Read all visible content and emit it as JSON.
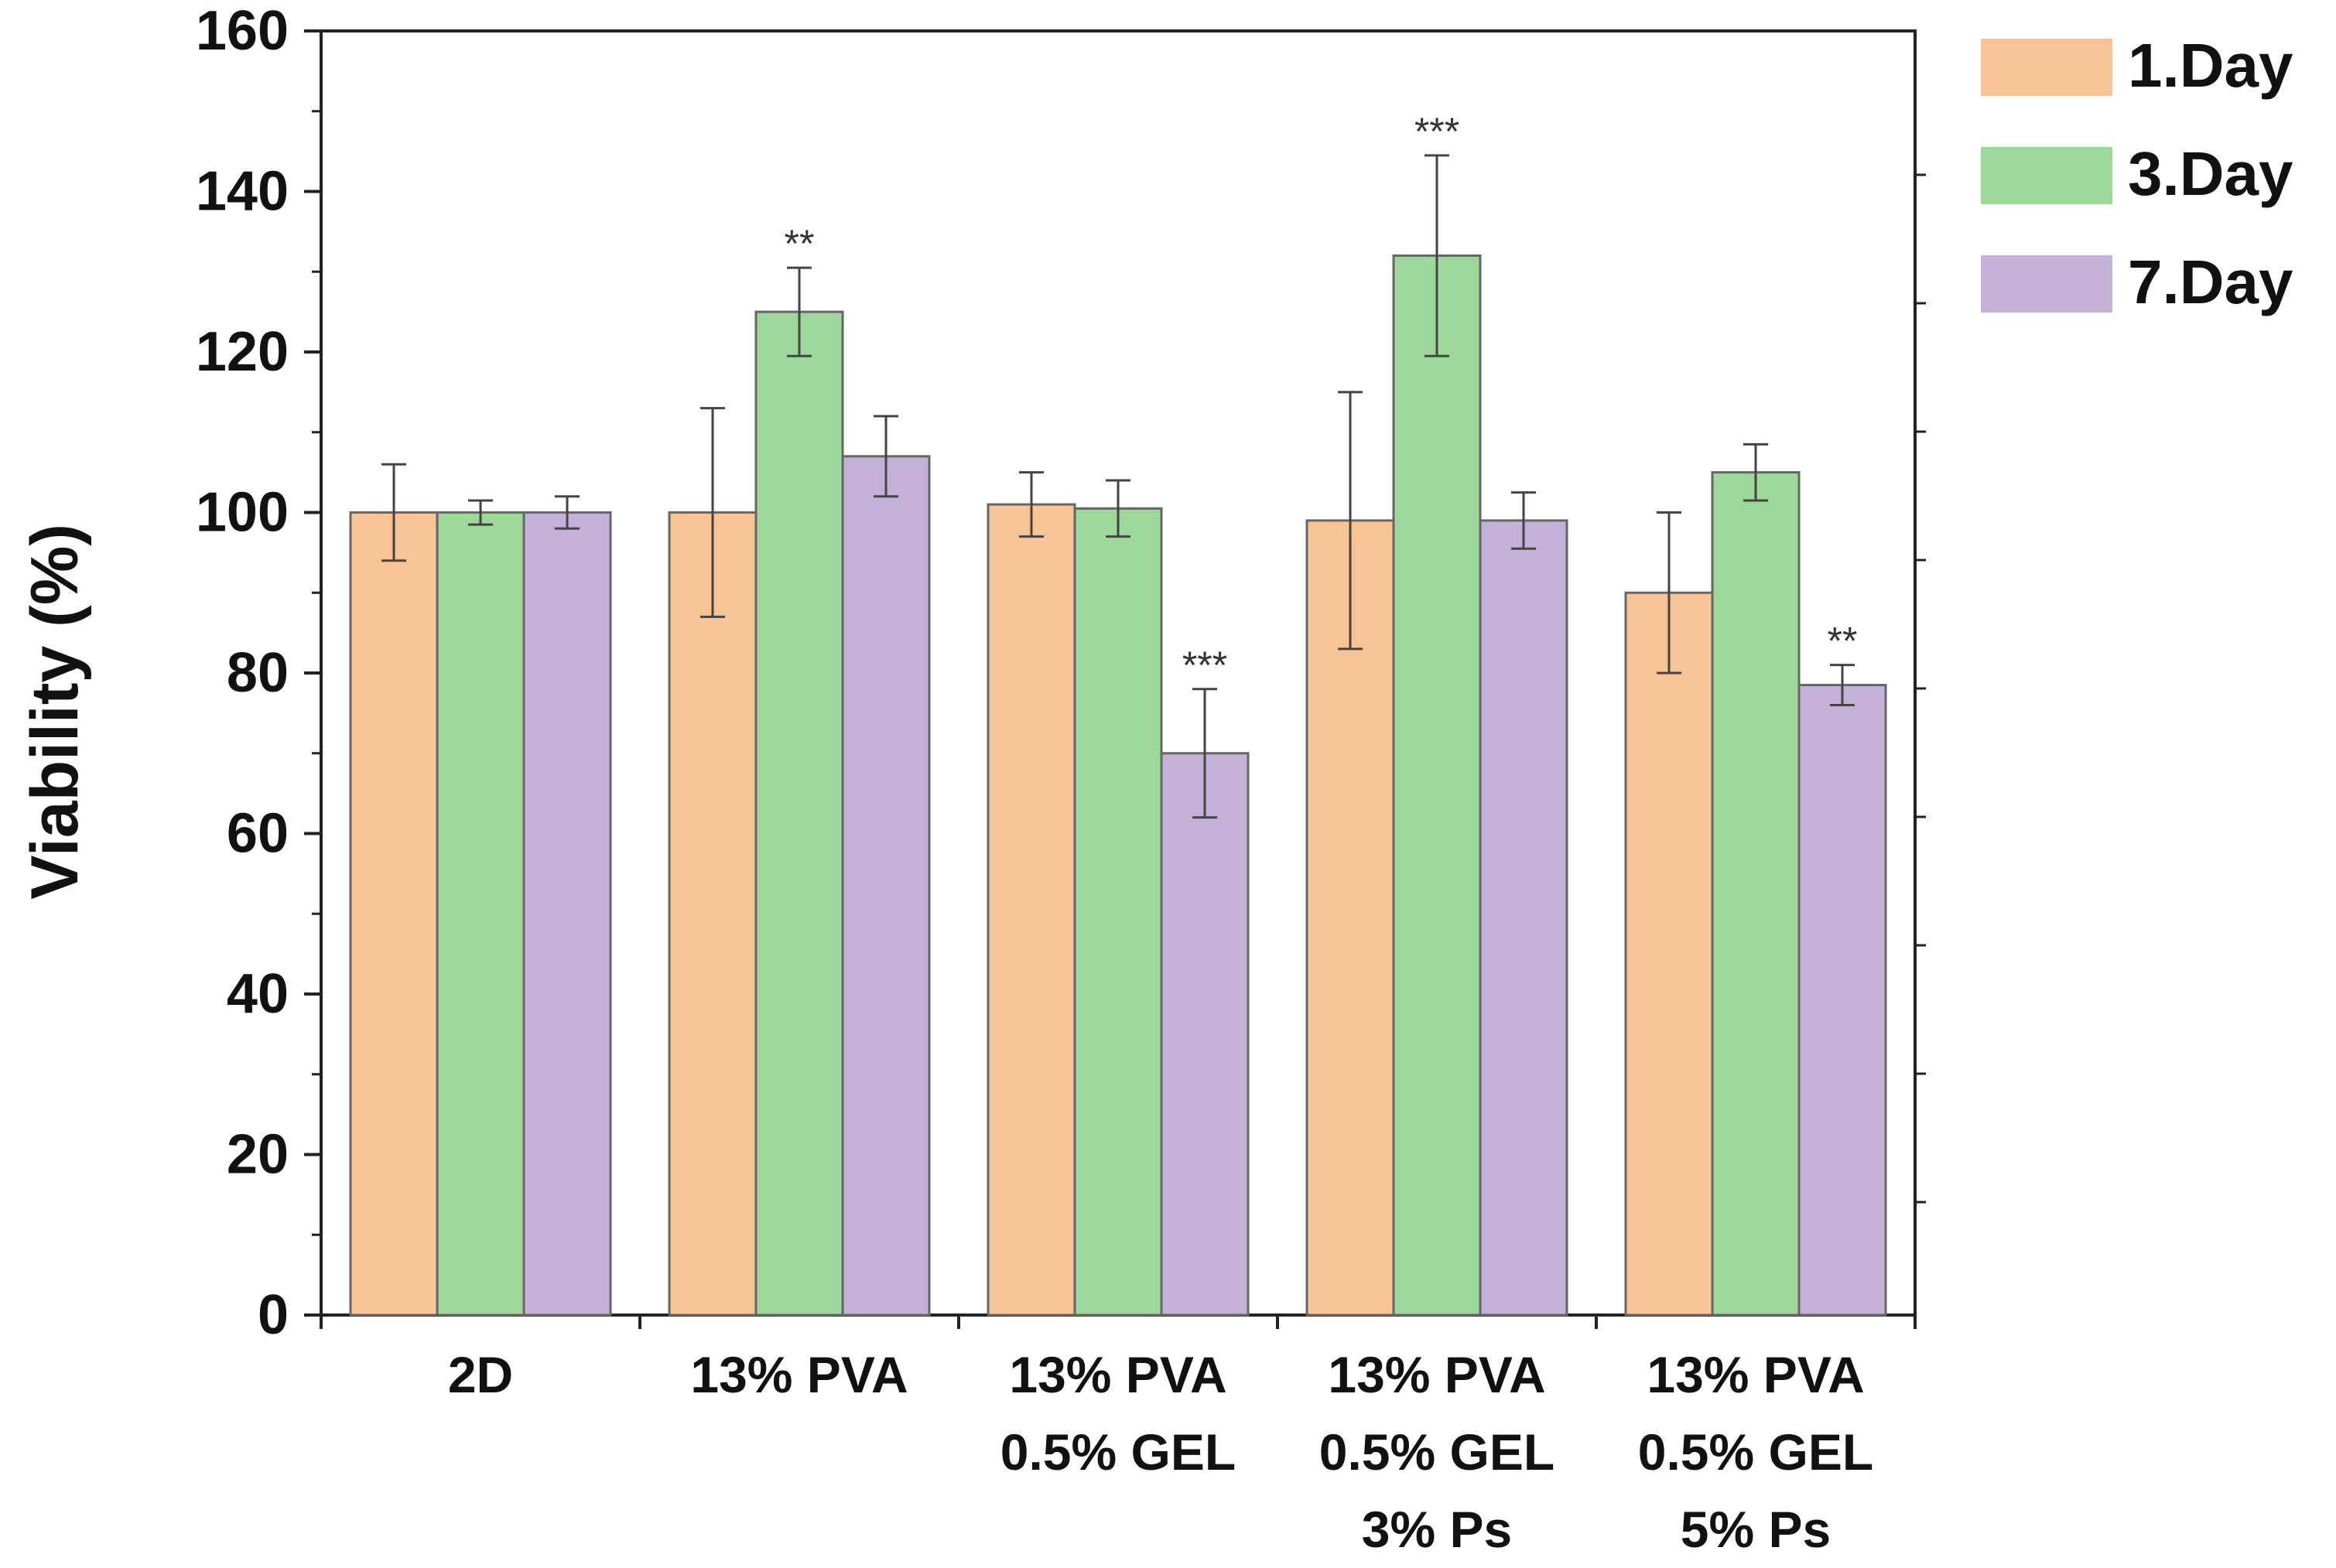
{
  "chart_data": {
    "type": "bar",
    "title": "",
    "xlabel": "",
    "ylabel": "Viability (%)",
    "ylim": [
      0,
      160
    ],
    "yticks": [
      "0",
      "20",
      "40",
      "60",
      "80",
      "100",
      "120",
      "140",
      "160"
    ],
    "grid": false,
    "legend_position": "top-right",
    "categories": [
      [
        "2D"
      ],
      [
        "13% PVA"
      ],
      [
        "13% PVA",
        "0.5% GEL"
      ],
      [
        "13% PVA",
        "0.5% GEL",
        "3% Ps"
      ],
      [
        "13% PVA",
        "0.5% GEL",
        "5% Ps"
      ]
    ],
    "series": [
      {
        "name": "1.Day",
        "color": "#f9c495",
        "values": [
          100,
          100,
          101,
          99,
          90
        ],
        "errors": [
          6,
          13,
          4,
          16,
          10
        ],
        "significance": [
          "",
          "",
          "",
          "",
          ""
        ]
      },
      {
        "name": "3.Day",
        "color": "#9dd89a",
        "values": [
          100,
          125,
          100.5,
          132,
          105
        ],
        "errors": [
          1.5,
          5.5,
          3.5,
          12.5,
          3.5
        ],
        "significance": [
          "",
          "**",
          "",
          "***",
          ""
        ]
      },
      {
        "name": "7.Day",
        "color": "#c4b1d8",
        "values": [
          100,
          107,
          70,
          99,
          78.5
        ],
        "errors": [
          2,
          5,
          8,
          3.5,
          2.5
        ],
        "significance": [
          "",
          "",
          "***",
          "",
          "**"
        ]
      }
    ]
  },
  "legend": [
    {
      "label": "1.Day",
      "color": "#f9c495"
    },
    {
      "label": "3.Day",
      "color": "#9dd89a"
    },
    {
      "label": "7.Day",
      "color": "#c4b1d8"
    }
  ]
}
